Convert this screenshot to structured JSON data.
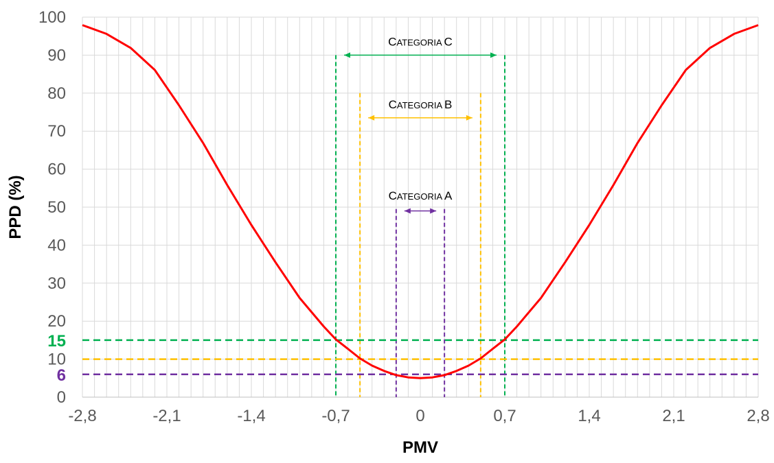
{
  "chart_data": {
    "type": "line",
    "xlabel": "PMV",
    "ylabel": "PPD (%)",
    "xlim": [
      -2.8,
      2.8
    ],
    "ylim": [
      0,
      100
    ],
    "x_ticks": [
      "-2,8",
      "-2,1",
      "-1,4",
      "-0,7",
      "0",
      "0,7",
      "1,4",
      "2,1",
      "2,8"
    ],
    "x_tick_values": [
      -2.8,
      -2.1,
      -1.4,
      -0.7,
      0,
      0.7,
      1.4,
      2.1,
      2.8
    ],
    "y_ticks": [
      "0",
      "10",
      "20",
      "30",
      "40",
      "50",
      "60",
      "70",
      "80",
      "90",
      "100"
    ],
    "y_tick_values": [
      0,
      10,
      20,
      30,
      40,
      50,
      60,
      70,
      80,
      90,
      100
    ],
    "grid": true,
    "series": [
      {
        "color": "#ff0000",
        "x": [
          -2.8,
          -2.6,
          -2.4,
          -2.2,
          -2.0,
          -1.8,
          -1.6,
          -1.4,
          -1.2,
          -1.0,
          -0.8,
          -0.7,
          -0.6,
          -0.5,
          -0.4,
          -0.3,
          -0.2,
          -0.1,
          0.0,
          0.1,
          0.2,
          0.3,
          0.4,
          0.5,
          0.6,
          0.7,
          0.8,
          1.0,
          1.2,
          1.4,
          1.6,
          1.8,
          2.0,
          2.2,
          2.4,
          2.6,
          2.8
        ],
        "y": [
          97.9,
          95.6,
          91.9,
          86.1,
          76.8,
          66.9,
          55.8,
          45.3,
          35.5,
          26.1,
          18.6,
          15.2,
          12.7,
          10.2,
          8.3,
          6.9,
          5.8,
          5.2,
          5.0,
          5.2,
          5.8,
          6.9,
          8.3,
          10.2,
          12.7,
          15.2,
          18.6,
          26.1,
          35.5,
          45.3,
          55.8,
          66.9,
          76.8,
          86.1,
          91.9,
          95.6,
          97.9
        ]
      }
    ],
    "thresholds": [
      {
        "label": "15",
        "y": 15,
        "color": "#00b050",
        "x_range": [
          -0.7,
          0.7
        ]
      },
      {
        "label": "10",
        "y": 10,
        "color": "#ffc000",
        "x_range": [
          -0.5,
          0.5
        ]
      },
      {
        "label": "6",
        "y": 6,
        "color": "#7030a0",
        "x_range": [
          -0.2,
          0.2
        ]
      }
    ],
    "categories_bands": [
      {
        "label_big": "C",
        "label_small": "ATEGORIA",
        "letter": "C",
        "arrow_y": 90,
        "color": "#00b050",
        "x_range": [
          -0.7,
          0.7
        ],
        "text_y": 92.5
      },
      {
        "label_big": "C",
        "label_small": "ATEGORIA",
        "letter": "B",
        "arrow_y": 73.5,
        "color": "#ffc000",
        "x_range": [
          -0.5,
          0.5
        ],
        "text_y": 76
      },
      {
        "label_big": "C",
        "label_small": "ATEGORIA",
        "letter": "A",
        "arrow_y": 49,
        "color": "#7030a0",
        "x_range": [
          -0.2,
          0.2
        ],
        "text_y": 52
      }
    ],
    "vline_top": {
      "C": 90,
      "B": 80,
      "A": 49.5
    }
  }
}
